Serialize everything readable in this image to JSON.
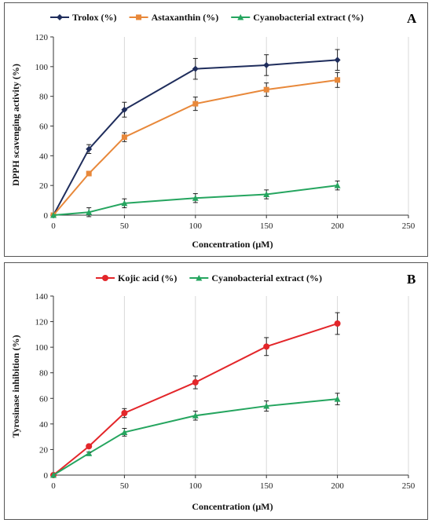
{
  "chart_data": [
    {
      "type": "line",
      "panel_label": "A",
      "xlabel": "Concentration (µM)",
      "ylabel": "DPPH scavenging activity (%)",
      "xlim": [
        0,
        250
      ],
      "ylim": [
        0,
        120
      ],
      "xticks": [
        0,
        50,
        100,
        150,
        200,
        250
      ],
      "yticks": [
        0,
        20,
        40,
        60,
        80,
        100,
        120
      ],
      "grid": "vertical",
      "legend_position": "top",
      "x": [
        0,
        25,
        50,
        100,
        150,
        200
      ],
      "series": [
        {
          "name": "Trolox (%)",
          "color": "#1f2d5c",
          "marker": "diamond",
          "values": [
            0,
            44.5,
            71,
            98.5,
            101,
            104.5
          ],
          "errors": [
            0,
            3,
            5,
            7,
            7,
            7
          ]
        },
        {
          "name": "Astaxanthin  (%)",
          "color": "#e8883a",
          "marker": "square",
          "values": [
            0,
            28,
            52.5,
            75,
            84.5,
            91
          ],
          "errors": [
            0,
            1.5,
            3,
            4.5,
            4.5,
            5
          ]
        },
        {
          "name": "Cyanobacterial extract  (%)",
          "color": "#25a55f",
          "marker": "triangle",
          "values": [
            0,
            2,
            8,
            11.5,
            14,
            20
          ],
          "errors": [
            0,
            3,
            3,
            3,
            3,
            3
          ]
        }
      ]
    },
    {
      "type": "line",
      "panel_label": "B",
      "xlabel": "Concentration (µM)",
      "ylabel": "Tyrosinase inhibition (%)",
      "xlim": [
        0,
        250
      ],
      "ylim": [
        0,
        140
      ],
      "xticks": [
        0,
        50,
        100,
        150,
        200,
        250
      ],
      "yticks": [
        0,
        20,
        40,
        60,
        80,
        100,
        120,
        140
      ],
      "grid": "vertical",
      "legend_position": "top",
      "x": [
        0,
        25,
        50,
        100,
        150,
        200
      ],
      "series": [
        {
          "name": "Kojic acid (%)",
          "color": "#e3262a",
          "marker": "circle",
          "values": [
            0,
            22.5,
            48.5,
            72.5,
            100.5,
            118.5
          ],
          "errors": [
            0,
            1,
            3.5,
            5,
            7,
            8.5
          ]
        },
        {
          "name": "Cyanobacterial extract  (%)",
          "color": "#25a55f",
          "marker": "triangle",
          "values": [
            0,
            17,
            33.5,
            46.5,
            54,
            59.5
          ],
          "errors": [
            0,
            1,
            3,
            3.5,
            4,
            4.5
          ]
        }
      ]
    }
  ]
}
